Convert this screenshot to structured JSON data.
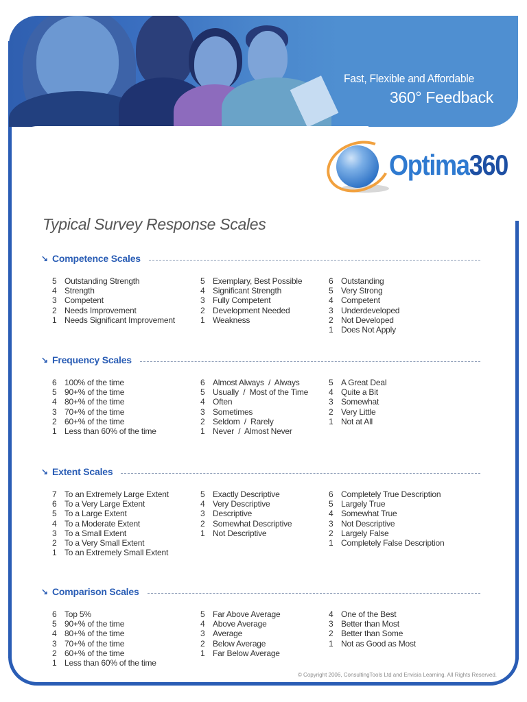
{
  "banner": {
    "tagline_line1": "Fast, Flexible and Affordable",
    "tagline_line2": "360° Feedback",
    "photo_description": "blue-tinted photo of four colleagues at a table",
    "background_color": "#4f8fd1"
  },
  "logo": {
    "text_part1": "Optima",
    "text_part2": "360",
    "icon": "globe-with-orbit-icon",
    "color_optima": "#2f7ad0",
    "color_360": "#1d4fa3",
    "orbit_color": "#f1a13f"
  },
  "page_title": "Typical Survey Response Scales",
  "accent_color": "#2a5db5",
  "sections": [
    {
      "title": "Competence Scales",
      "icon": "arrow-down-right-icon",
      "columns": [
        [
          {
            "n": "5",
            "label": "Outstanding Strength"
          },
          {
            "n": "4",
            "label": "Strength"
          },
          {
            "n": "3",
            "label": "Competent"
          },
          {
            "n": "2",
            "label": "Needs Improvement"
          },
          {
            "n": "1",
            "label": "Needs Significant Improvement"
          }
        ],
        [
          {
            "n": "5",
            "label": "Exemplary, Best Possible"
          },
          {
            "n": "4",
            "label": "Significant Strength"
          },
          {
            "n": "3",
            "label": "Fully Competent"
          },
          {
            "n": "2",
            "label": "Development Needed"
          },
          {
            "n": "1",
            "label": "Weakness"
          }
        ],
        [
          {
            "n": "6",
            "label": "Outstanding"
          },
          {
            "n": "5",
            "label": "Very Strong"
          },
          {
            "n": "4",
            "label": "Competent"
          },
          {
            "n": "3",
            "label": "Underdeveloped"
          },
          {
            "n": "2",
            "label": "Not Developed"
          },
          {
            "n": "1",
            "label": "Does Not Apply"
          }
        ]
      ]
    },
    {
      "title": "Frequency Scales",
      "icon": "arrow-down-right-icon",
      "columns": [
        [
          {
            "n": "6",
            "label": "100% of the time"
          },
          {
            "n": "5",
            "label": "90+% of the time"
          },
          {
            "n": "4",
            "label": "80+% of the time"
          },
          {
            "n": "3",
            "label": "70+% of the time"
          },
          {
            "n": "2",
            "label": "60+% of the time"
          },
          {
            "n": "1",
            "label": "Less than 60% of the time"
          }
        ],
        [
          {
            "n": "6",
            "label": "Almost Always  /  Always"
          },
          {
            "n": "5",
            "label": "Usually  /  Most of the Time"
          },
          {
            "n": "4",
            "label": "Often"
          },
          {
            "n": "3",
            "label": "Sometimes"
          },
          {
            "n": "2",
            "label": "Seldom  /  Rarely"
          },
          {
            "n": "1",
            "label": "Never  /  Almost Never"
          }
        ],
        [
          {
            "n": "5",
            "label": "A Great Deal"
          },
          {
            "n": "4",
            "label": "Quite a Bit"
          },
          {
            "n": "3",
            "label": "Somewhat"
          },
          {
            "n": "2",
            "label": "Very Little"
          },
          {
            "n": "1",
            "label": "Not at All"
          }
        ]
      ]
    },
    {
      "title": "Extent Scales",
      "icon": "arrow-down-right-icon",
      "columns": [
        [
          {
            "n": "7",
            "label": "To an Extremely Large Extent"
          },
          {
            "n": "6",
            "label": "To a Very Large Extent"
          },
          {
            "n": "5",
            "label": "To a Large Extent"
          },
          {
            "n": "4",
            "label": "To a Moderate Extent"
          },
          {
            "n": "3",
            "label": "To a Small Extent"
          },
          {
            "n": "2",
            "label": "To a Very Small Extent"
          },
          {
            "n": "1",
            "label": "To an Extremely Small Extent"
          }
        ],
        [
          {
            "n": "5",
            "label": "Exactly Descriptive"
          },
          {
            "n": "4",
            "label": "Very Descriptive"
          },
          {
            "n": "3",
            "label": "Descriptive"
          },
          {
            "n": "2",
            "label": "Somewhat Descriptive"
          },
          {
            "n": "1",
            "label": "Not Descriptive"
          }
        ],
        [
          {
            "n": "6",
            "label": "Completely True Description"
          },
          {
            "n": "5",
            "label": "Largely True"
          },
          {
            "n": "4",
            "label": "Somewhat True"
          },
          {
            "n": "3",
            "label": "Not Descriptive"
          },
          {
            "n": "2",
            "label": "Largely False"
          },
          {
            "n": "1",
            "label": "Completely False Description"
          }
        ]
      ]
    },
    {
      "title": "Comparison Scales",
      "icon": "arrow-down-right-icon",
      "columns": [
        [
          {
            "n": "6",
            "label": "Top 5%"
          },
          {
            "n": "5",
            "label": "90+% of the time"
          },
          {
            "n": "4",
            "label": "80+% of the time"
          },
          {
            "n": "3",
            "label": "70+% of the time"
          },
          {
            "n": "2",
            "label": "60+% of the time"
          },
          {
            "n": "1",
            "label": "Less than 60% of the time"
          }
        ],
        [
          {
            "n": "5",
            "label": "Far Above Average"
          },
          {
            "n": "4",
            "label": "Above Average"
          },
          {
            "n": "3",
            "label": "Average"
          },
          {
            "n": "2",
            "label": "Below Average"
          },
          {
            "n": "1",
            "label": "Far Below Average"
          }
        ],
        [
          {
            "n": "4",
            "label": "One of the Best"
          },
          {
            "n": "3",
            "label": "Better than Most"
          },
          {
            "n": "2",
            "label": "Better than Some"
          },
          {
            "n": "1",
            "label": "Not as Good as Most"
          }
        ]
      ]
    }
  ],
  "footer": {
    "copyright": "© Copyright 2006, ConsultingTools Ltd  and Envisia Learning. All Rights Reserved."
  }
}
